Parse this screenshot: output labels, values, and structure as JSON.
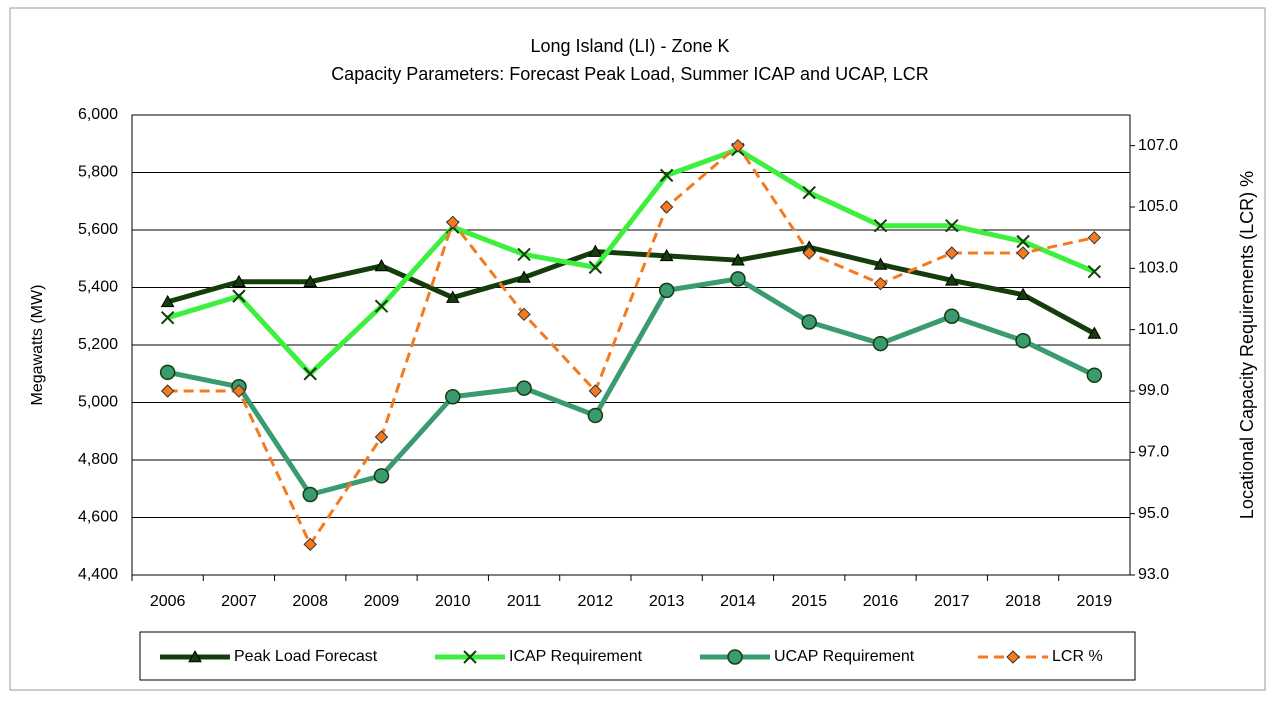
{
  "chart_data": {
    "type": "line",
    "title": "Long Island (LI) - Zone K",
    "subtitle": "Capacity Parameters: Forecast Peak Load, Summer ICAP and UCAP, LCR",
    "y_label": "Megawatts  (MW)",
    "y2_label": "Locational Capacity Requirements (LCR) %",
    "categories": [
      "2006",
      "2007",
      "2008",
      "2009",
      "2010",
      "2011",
      "2012",
      "2013",
      "2014",
      "2015",
      "2016",
      "2017",
      "2018",
      "2019"
    ],
    "series": [
      {
        "name": "Peak Load Forecast",
        "color": "#153d0c",
        "marker": "triangle",
        "dashed": false,
        "values": [
          5350,
          5420,
          5420,
          5475,
          5365,
          5435,
          5525,
          5510,
          5495,
          5540,
          5480,
          5425,
          5375,
          5240
        ]
      },
      {
        "name": "ICAP Requirement",
        "color": "#3ef03e",
        "marker": "x",
        "dashed": false,
        "values": [
          5295,
          5370,
          5100,
          5335,
          5610,
          5515,
          5470,
          5790,
          5880,
          5730,
          5615,
          5615,
          5560,
          5455
        ]
      },
      {
        "name": "UCAP Requirement",
        "color": "#3a9a70",
        "marker": "circle",
        "dashed": false,
        "values": [
          5105,
          5055,
          4680,
          4745,
          5020,
          5050,
          4955,
          5390,
          5430,
          5280,
          5205,
          5300,
          5215,
          5095
        ]
      },
      {
        "name": "LCR %",
        "color": "#f47a20",
        "marker": "diamond",
        "dashed": true,
        "axis": "y2",
        "values": [
          99,
          99,
          94,
          97.5,
          104.5,
          101.5,
          99,
          105,
          107,
          103.5,
          102.5,
          103.5,
          103.5,
          104
        ]
      }
    ],
    "ylim": [
      4400,
      6000
    ],
    "yticks": [
      {
        "value": 4400,
        "label": "4,400"
      },
      {
        "value": 4600,
        "label": "4,600"
      },
      {
        "value": 4800,
        "label": "4,800"
      },
      {
        "value": 5000,
        "label": "5,000"
      },
      {
        "value": 5200,
        "label": "5,200"
      },
      {
        "value": 5400,
        "label": "5,400"
      },
      {
        "value": 5600,
        "label": "5,600"
      },
      {
        "value": 5800,
        "label": "5,800"
      },
      {
        "value": 6000,
        "label": "6,000"
      }
    ],
    "y2lim": [
      93,
      108
    ],
    "y2ticks": [
      {
        "value": 93,
        "label": "93.0"
      },
      {
        "value": 95,
        "label": "95.0"
      },
      {
        "value": 97,
        "label": "97.0"
      },
      {
        "value": 99,
        "label": "99.0"
      },
      {
        "value": 101,
        "label": "101.0"
      },
      {
        "value": 103,
        "label": "103.0"
      },
      {
        "value": 105,
        "label": "105.0"
      },
      {
        "value": 107,
        "label": "107.0"
      }
    ],
    "grid": true,
    "legend": "bottom"
  }
}
